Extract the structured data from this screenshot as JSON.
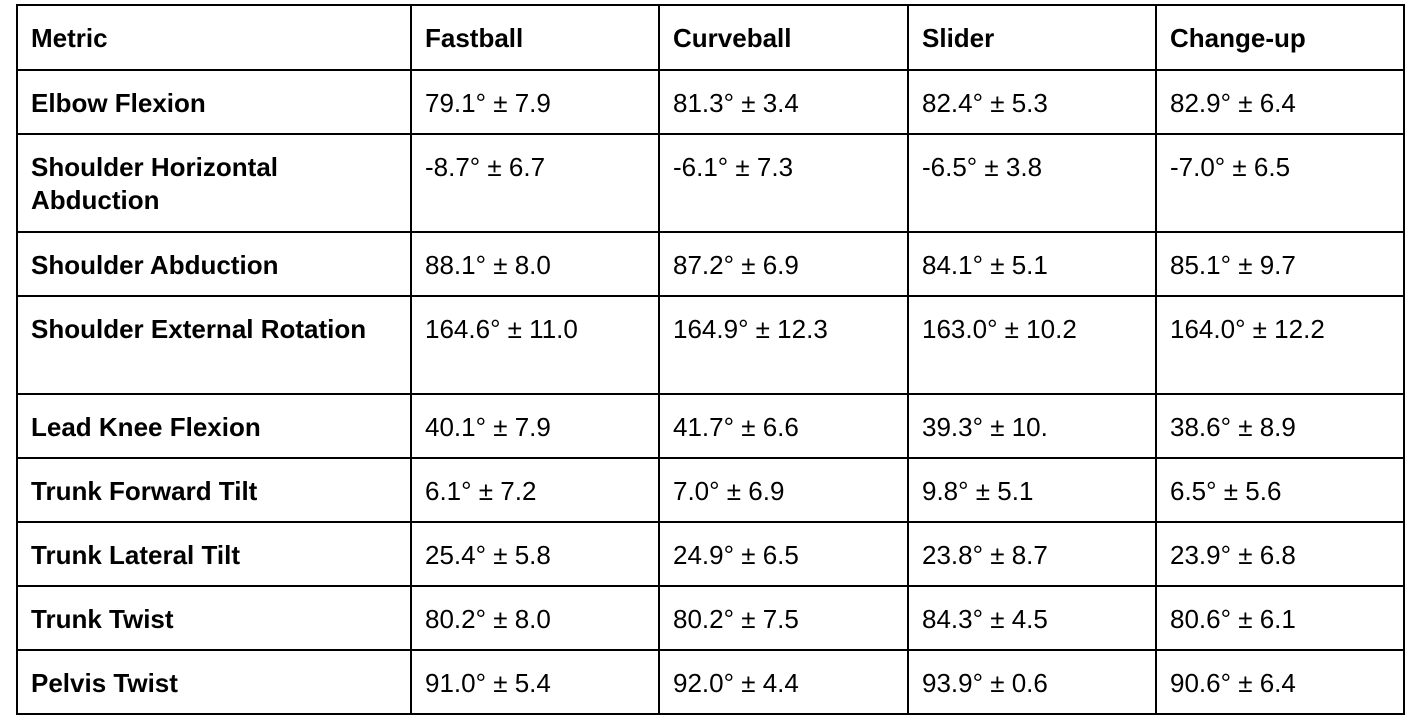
{
  "table": {
    "headers": [
      "Metric",
      "Fastball",
      "Curveball",
      "Slider",
      "Change-up"
    ],
    "rows": [
      {
        "metric": "Elbow Flexion",
        "values": [
          "79.1° ± 7.9",
          "81.3° ± 3.4",
          "82.4° ± 5.3",
          "82.9° ± 6.4"
        ]
      },
      {
        "metric": "Shoulder Horizontal Abduction",
        "values": [
          "-8.7° ± 6.7",
          "-6.1° ± 7.3",
          "-6.5° ± 3.8",
          "-7.0° ± 6.5"
        ]
      },
      {
        "metric": "Shoulder Abduction",
        "values": [
          "88.1° ± 8.0",
          "87.2° ± 6.9",
          "84.1° ± 5.1",
          "85.1° ± 9.7"
        ]
      },
      {
        "metric": "Shoulder External Rotation",
        "values": [
          "164.6° ± 11.0",
          "164.9° ± 12.3",
          "163.0° ± 10.2",
          "164.0° ± 12.2"
        ]
      },
      {
        "metric": "Lead Knee Flexion",
        "values": [
          "40.1° ± 7.9",
          "41.7° ± 6.6",
          "39.3° ± 10.",
          "38.6° ± 8.9"
        ]
      },
      {
        "metric": "Trunk Forward Tilt",
        "values": [
          "6.1° ± 7.2",
          "7.0° ± 6.9",
          "9.8° ± 5.1",
          "6.5° ± 5.6"
        ]
      },
      {
        "metric": "Trunk Lateral Tilt",
        "values": [
          "25.4° ± 5.8",
          "24.9° ± 6.5",
          "23.8° ± 8.7",
          "23.9° ± 6.8"
        ]
      },
      {
        "metric": "Trunk Twist",
        "values": [
          "80.2° ± 8.0",
          "80.2° ± 7.5",
          "84.3° ± 4.5",
          "80.6° ± 6.1"
        ]
      },
      {
        "metric": "Pelvis Twist",
        "values": [
          "91.0° ± 5.4",
          "92.0° ± 4.4",
          "93.9° ± 0.6",
          "90.6° ± 6.4"
        ]
      }
    ]
  }
}
